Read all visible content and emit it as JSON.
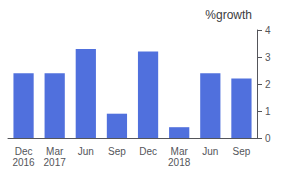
{
  "chart_data": {
    "type": "bar",
    "title": "%growth",
    "categories": [
      "Dec\n2016",
      "Mar\n2017",
      "Jun",
      "Sep",
      "Dec",
      "Mar\n2018",
      "Jun",
      "Sep"
    ],
    "values": [
      2.4,
      2.4,
      3.3,
      0.9,
      3.2,
      0.4,
      2.4,
      2.2
    ],
    "ylim": [
      0,
      4
    ],
    "yticks": [
      0,
      1,
      2,
      3,
      4
    ],
    "grid": false
  }
}
